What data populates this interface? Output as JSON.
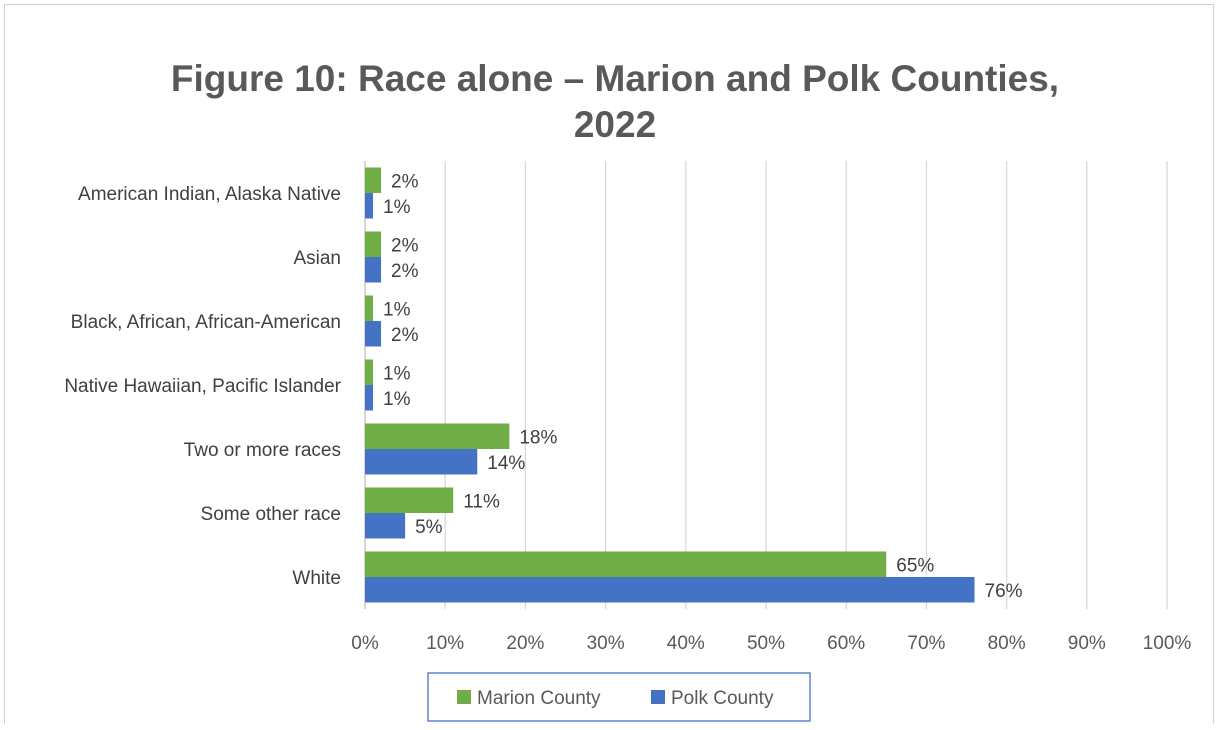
{
  "chart_data": {
    "type": "bar",
    "orientation": "horizontal",
    "title": "Figure 10: Race alone – Marion and Polk Counties, 2022",
    "title_lines": [
      "Figure 10: Race alone – Marion and Polk Counties,",
      "2022"
    ],
    "categories": [
      "American Indian, Alaska Native",
      "Asian",
      "Black, African, African-American",
      "Native Hawaiian, Pacific Islander",
      "Two or more races",
      "Some other race",
      "White"
    ],
    "series": [
      {
        "name": "Marion County",
        "color": "#70ad47",
        "values": [
          2,
          2,
          1,
          1,
          18,
          11,
          65
        ],
        "labels": [
          "2%",
          "2%",
          "1%",
          "1%",
          "18%",
          "11%",
          "65%"
        ]
      },
      {
        "name": "Polk County",
        "color": "#4472c4",
        "values": [
          1,
          2,
          2,
          1,
          14,
          5,
          76
        ],
        "labels": [
          "1%",
          "2%",
          "2%",
          "1%",
          "14%",
          "5%",
          "76%"
        ]
      }
    ],
    "xlim": [
      0,
      100
    ],
    "x_ticks": [
      0,
      10,
      20,
      30,
      40,
      50,
      60,
      70,
      80,
      90,
      100
    ],
    "x_tick_labels": [
      "0%",
      "10%",
      "20%",
      "30%",
      "40%",
      "50%",
      "60%",
      "70%",
      "80%",
      "90%",
      "100%"
    ],
    "xlabel": "",
    "ylabel": "",
    "grid": "vertical",
    "legend_position": "bottom"
  }
}
